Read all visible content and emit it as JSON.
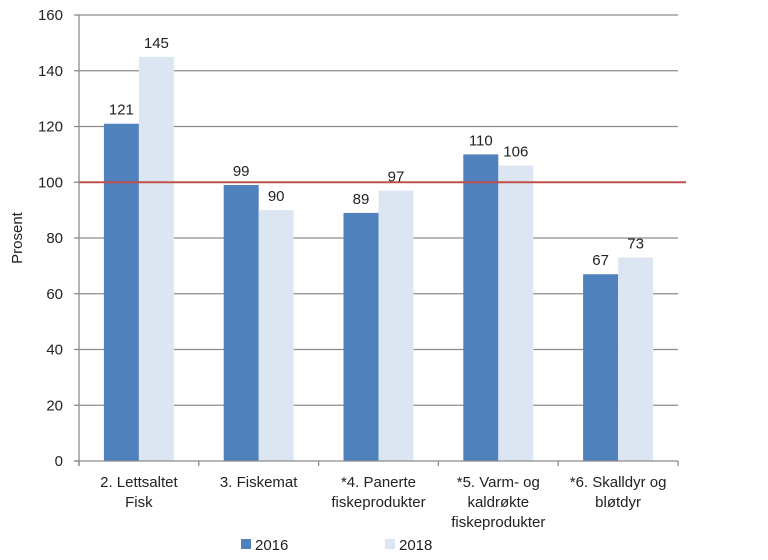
{
  "chart_data": {
    "type": "bar",
    "title": "",
    "xlabel": "",
    "ylabel": "Prosent",
    "ylim": [
      0,
      160
    ],
    "yticks": [
      0,
      20,
      40,
      60,
      80,
      100,
      120,
      140,
      160
    ],
    "grid": true,
    "legend_position": "bottom",
    "categories": [
      [
        "2. Lettsaltet",
        "Fisk"
      ],
      [
        "3. Fiskemat"
      ],
      [
        "*4. Panerte",
        "fiskeprodukter"
      ],
      [
        "*5. Varm- og",
        "kaldrøkte",
        "fiskeprodukter"
      ],
      [
        "*6. Skalldyr og",
        "bløtdyr"
      ]
    ],
    "series": [
      {
        "name": "2016",
        "color": "#4f81bd",
        "values": [
          121,
          99,
          89,
          110,
          67
        ]
      },
      {
        "name": "2018",
        "color": "#dce6f2",
        "values": [
          145,
          90,
          97,
          106,
          73
        ]
      }
    ],
    "reference_line": {
      "value": 100,
      "color": "#c0504d"
    }
  }
}
